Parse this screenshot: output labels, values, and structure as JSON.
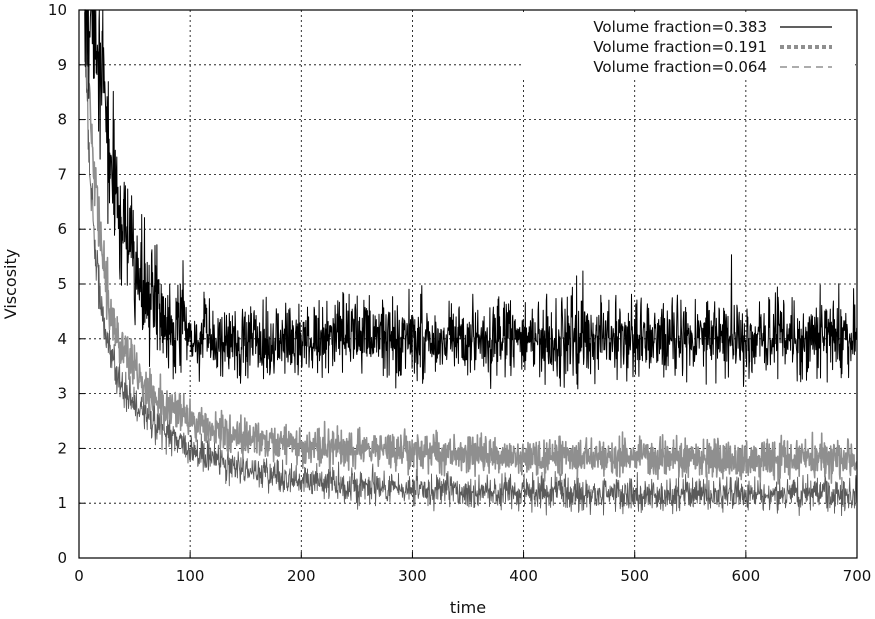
{
  "chart_data": {
    "type": "line",
    "title": "",
    "xlabel": "time",
    "ylabel": "Viscosity",
    "xlim": [
      0,
      700
    ],
    "ylim": [
      0,
      10
    ],
    "xticks": [
      0,
      100,
      200,
      300,
      400,
      500,
      600,
      700
    ],
    "yticks": [
      0,
      1,
      2,
      3,
      4,
      5,
      6,
      7,
      8,
      9,
      10
    ],
    "grid": true,
    "legend_position": "top-right",
    "series": [
      {
        "name": "Volume fraction=0.383",
        "color": "#000000",
        "style": "solid",
        "noise_amplitude": 0.45,
        "x": [
          5,
          10,
          15,
          20,
          25,
          30,
          40,
          50,
          60,
          70,
          80,
          90,
          100,
          120,
          150,
          200,
          250,
          300,
          350,
          400,
          450,
          500,
          550,
          600,
          650,
          700
        ],
        "y": [
          10,
          10,
          9.9,
          8.8,
          7.8,
          7.0,
          6.0,
          5.3,
          4.9,
          4.6,
          4.4,
          4.25,
          4.0,
          3.95,
          3.95,
          4.0,
          4.05,
          4.0,
          3.95,
          4.0,
          4.0,
          4.0,
          3.95,
          4.0,
          4.05,
          4.0
        ]
      },
      {
        "name": "Volume fraction=0.191",
        "color": "#8f8f8f",
        "style": "dotted-thick",
        "noise_amplitude": 0.22,
        "x": [
          5,
          10,
          15,
          20,
          25,
          30,
          40,
          50,
          60,
          70,
          80,
          90,
          100,
          120,
          150,
          200,
          250,
          300,
          350,
          400,
          450,
          500,
          550,
          600,
          650,
          700
        ],
        "y": [
          10,
          8.0,
          6.8,
          5.7,
          4.9,
          4.4,
          3.8,
          3.4,
          3.1,
          2.9,
          2.75,
          2.6,
          2.5,
          2.35,
          2.2,
          2.05,
          2.0,
          1.95,
          1.9,
          1.85,
          1.85,
          1.85,
          1.8,
          1.8,
          1.85,
          1.8
        ]
      },
      {
        "name": "Volume fraction=0.064",
        "color": "#5a5a5a",
        "style": "dashed",
        "noise_amplitude": 0.2,
        "x": [
          5,
          10,
          15,
          20,
          25,
          30,
          40,
          50,
          60,
          70,
          80,
          90,
          100,
          120,
          150,
          200,
          250,
          300,
          350,
          400,
          450,
          500,
          550,
          600,
          650,
          700
        ],
        "y": [
          9.5,
          7.0,
          5.6,
          4.6,
          4.0,
          3.6,
          3.1,
          2.8,
          2.6,
          2.4,
          2.25,
          2.15,
          2.0,
          1.8,
          1.6,
          1.4,
          1.3,
          1.25,
          1.2,
          1.2,
          1.2,
          1.15,
          1.15,
          1.15,
          1.2,
          1.15
        ]
      }
    ]
  }
}
